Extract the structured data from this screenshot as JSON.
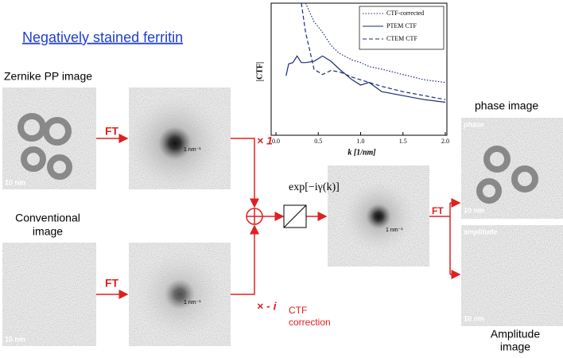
{
  "title": "Negatively stained ferritin",
  "zernike_label": "Zernike PP image",
  "conventional_label": [
    "Conventional",
    "image"
  ],
  "ft_labels": [
    "FT",
    "FT",
    "FT"
  ],
  "multipliers": [
    "× 1",
    "× - i"
  ],
  "phase_factor": "exp[−iγ(k)]",
  "ctf_correction": [
    "CTF",
    "correction"
  ],
  "phase_label": "phase image",
  "amplitude_label": [
    "Amplitude",
    "image"
  ],
  "image_tags": {
    "phase": "phase",
    "amplitude": "amplitude"
  },
  "scale_bars": [
    "10 nm",
    "10 nm",
    "10 nm",
    "10 nm"
  ],
  "fft_scale": [
    "1 nm⁻¹",
    "1 nm⁻¹",
    "1 nm⁻¹"
  ],
  "chart_data": {
    "type": "line",
    "ylabel": "|CTF|",
    "xlabel": "k [1/nm]",
    "xlim": [
      0,
      2
    ],
    "ylim": [
      0,
      1
    ],
    "xticks": [
      {
        "value": 0,
        "label": "0.0"
      },
      {
        "value": 0.5,
        "label": "0.5"
      },
      {
        "value": 1,
        "label": "1.0"
      },
      {
        "value": 1.5,
        "label": "1.5"
      },
      {
        "value": 2,
        "label": "2.0"
      }
    ],
    "x": [
      0.12,
      0.15,
      0.2,
      0.25,
      0.3,
      0.35,
      0.45,
      0.55,
      0.65,
      0.75,
      0.9,
      1.0,
      1.1,
      1.25,
      1.5,
      1.75,
      2.0
    ],
    "series": [
      {
        "name": "CTF-corrected",
        "dash": "1.5 2",
        "values": [
          null,
          null,
          null,
          null,
          null,
          1.0,
          0.86,
          0.78,
          0.68,
          0.62,
          0.57,
          0.55,
          0.52,
          0.5,
          0.46,
          0.42,
          0.4
        ]
      },
      {
        "name": "PTEM CTF",
        "dash": "none",
        "values": [
          0.45,
          0.54,
          0.55,
          0.6,
          0.55,
          0.55,
          0.56,
          0.6,
          0.56,
          0.5,
          0.42,
          0.38,
          0.4,
          0.33,
          0.3,
          0.27,
          0.25
        ]
      },
      {
        "name": "CTEM CTF",
        "dash": "5 3",
        "values": [
          null,
          null,
          null,
          null,
          1.0,
          0.78,
          0.5,
          0.46,
          0.49,
          0.48,
          0.44,
          0.42,
          0.4,
          0.37,
          0.33,
          0.3,
          0.27
        ]
      }
    ]
  }
}
